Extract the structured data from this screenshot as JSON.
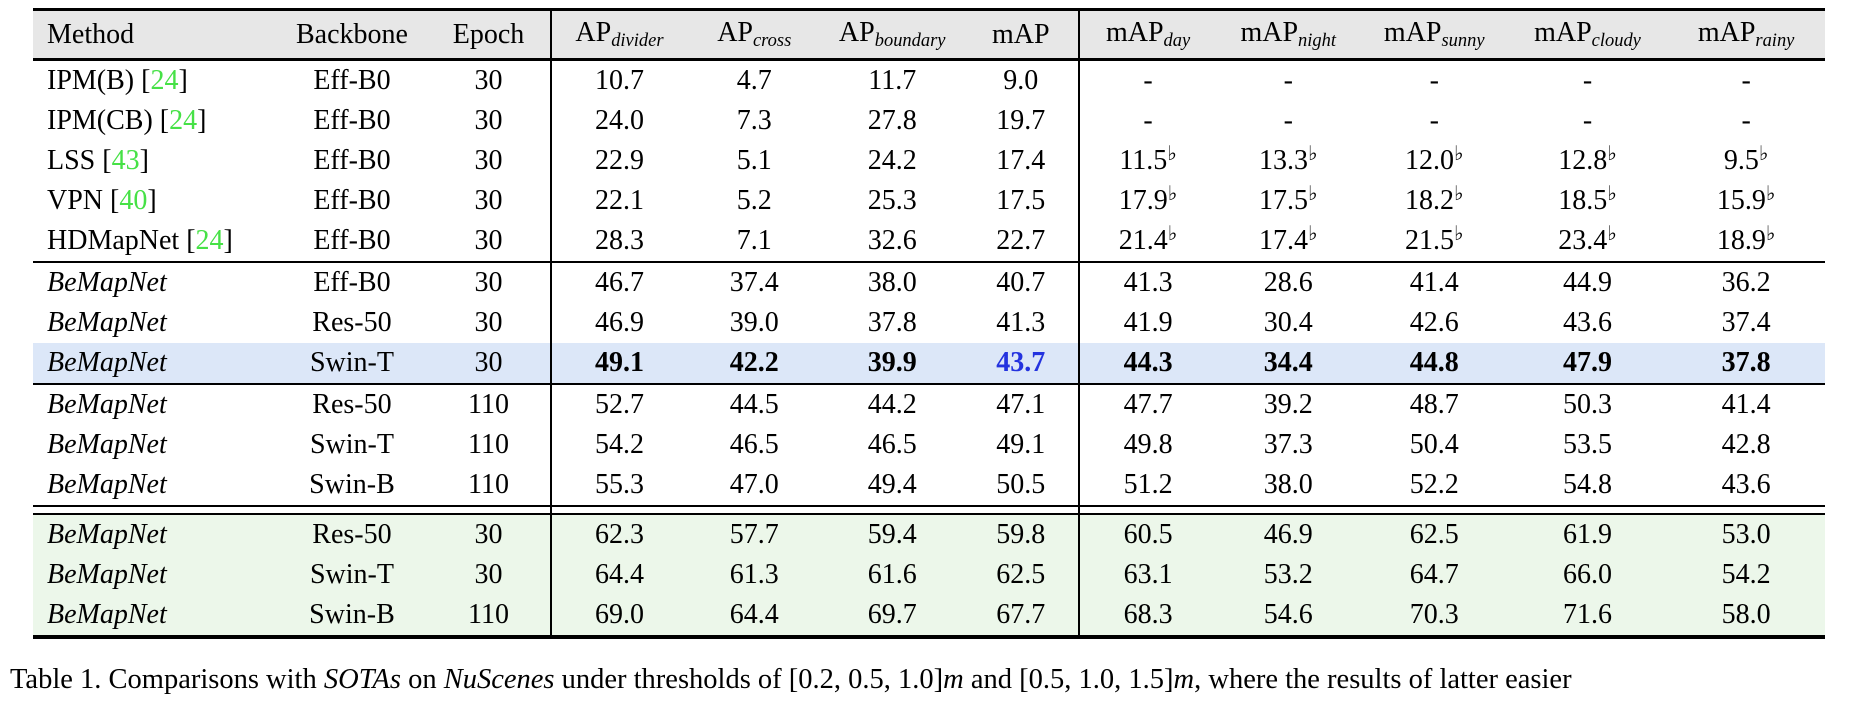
{
  "colors": {
    "header_bg": "#e7e7e7",
    "highlight_blue_row": "#dce7f8",
    "highlight_green_row": "#ecf7ea",
    "citation_green": "#46e146",
    "map_value_blue": "#2433df"
  },
  "table": {
    "header": [
      {
        "key": "method",
        "main": "Method",
        "sub": ""
      },
      {
        "key": "backbone",
        "main": "Backbone",
        "sub": ""
      },
      {
        "key": "epoch",
        "main": "Epoch",
        "sub": ""
      },
      {
        "key": "ap-divider",
        "main": "AP",
        "sub": "divider"
      },
      {
        "key": "ap-cross",
        "main": "AP",
        "sub": "cross"
      },
      {
        "key": "ap-boundary",
        "main": "AP",
        "sub": "boundary"
      },
      {
        "key": "map",
        "main": "mAP",
        "sub": ""
      },
      {
        "key": "map-day",
        "main": "mAP",
        "sub": "day"
      },
      {
        "key": "map-night",
        "main": "mAP",
        "sub": "night"
      },
      {
        "key": "map-sunny",
        "main": "mAP",
        "sub": "sunny"
      },
      {
        "key": "map-cloudy",
        "main": "mAP",
        "sub": "cloudy"
      },
      {
        "key": "map-rainy",
        "main": "mAP",
        "sub": "rainy"
      }
    ],
    "groups": [
      {
        "sep": "none",
        "rows": [
          {
            "method": "IPM(B)",
            "cite": "24",
            "italic": false,
            "backbone": "Eff-B0",
            "epoch": "30",
            "values": [
              "10.7",
              "4.7",
              "11.7",
              "9.0",
              "-",
              "-",
              "-",
              "-",
              "-"
            ],
            "bold_values": false,
            "hl": null,
            "map_blue": false
          },
          {
            "method": "IPM(CB)",
            "cite": "24",
            "italic": false,
            "backbone": "Eff-B0",
            "epoch": "30",
            "values": [
              "24.0",
              "7.3",
              "27.8",
              "19.7",
              "-",
              "-",
              "-",
              "-",
              "-"
            ],
            "bold_values": false,
            "hl": null,
            "map_blue": false
          },
          {
            "method": "LSS",
            "cite": "43",
            "italic": false,
            "backbone": "Eff-B0",
            "epoch": "30",
            "values": [
              "22.9",
              "5.1",
              "24.2",
              "17.4",
              "11.5♭",
              "13.3♭",
              "12.0♭",
              "12.8♭",
              "9.5♭"
            ],
            "bold_values": false,
            "hl": null,
            "map_blue": false
          },
          {
            "method": "VPN",
            "cite": "40",
            "italic": false,
            "backbone": "Eff-B0",
            "epoch": "30",
            "values": [
              "22.1",
              "5.2",
              "25.3",
              "17.5",
              "17.9♭",
              "17.5♭",
              "18.2♭",
              "18.5♭",
              "15.9♭"
            ],
            "bold_values": false,
            "hl": null,
            "map_blue": false
          },
          {
            "method": "HDMapNet",
            "cite": "24",
            "italic": false,
            "backbone": "Eff-B0",
            "epoch": "30",
            "values": [
              "28.3",
              "7.1",
              "32.6",
              "22.7",
              "21.4♭",
              "17.4♭",
              "21.5♭",
              "23.4♭",
              "18.9♭"
            ],
            "bold_values": false,
            "hl": null,
            "map_blue": false
          }
        ]
      },
      {
        "sep": "single",
        "rows": [
          {
            "method": "BeMapNet",
            "cite": "",
            "italic": true,
            "backbone": "Eff-B0",
            "epoch": "30",
            "values": [
              "46.7",
              "37.4",
              "38.0",
              "40.7",
              "41.3",
              "28.6",
              "41.4",
              "44.9",
              "36.2"
            ],
            "bold_values": false,
            "hl": null,
            "map_blue": false
          },
          {
            "method": "BeMapNet",
            "cite": "",
            "italic": true,
            "backbone": "Res-50",
            "epoch": "30",
            "values": [
              "46.9",
              "39.0",
              "37.8",
              "41.3",
              "41.9",
              "30.4",
              "42.6",
              "43.6",
              "37.4"
            ],
            "bold_values": false,
            "hl": null,
            "map_blue": false
          },
          {
            "method": "BeMapNet",
            "cite": "",
            "italic": true,
            "backbone": "Swin-T",
            "epoch": "30",
            "values": [
              "49.1",
              "42.2",
              "39.9",
              "43.7",
              "44.3",
              "34.4",
              "44.8",
              "47.9",
              "37.8"
            ],
            "bold_values": true,
            "hl": "blue",
            "map_blue": true
          }
        ]
      },
      {
        "sep": "single",
        "rows": [
          {
            "method": "BeMapNet",
            "cite": "",
            "italic": true,
            "backbone": "Res-50",
            "epoch": "110",
            "values": [
              "52.7",
              "44.5",
              "44.2",
              "47.1",
              "47.7",
              "39.2",
              "48.7",
              "50.3",
              "41.4"
            ],
            "bold_values": false,
            "hl": null,
            "map_blue": false
          },
          {
            "method": "BeMapNet",
            "cite": "",
            "italic": true,
            "backbone": "Swin-T",
            "epoch": "110",
            "values": [
              "54.2",
              "46.5",
              "46.5",
              "49.1",
              "49.8",
              "37.3",
              "50.4",
              "53.5",
              "42.8"
            ],
            "bold_values": false,
            "hl": null,
            "map_blue": false
          },
          {
            "method": "BeMapNet",
            "cite": "",
            "italic": true,
            "backbone": "Swin-B",
            "epoch": "110",
            "values": [
              "55.3",
              "47.0",
              "49.4",
              "50.5",
              "51.2",
              "38.0",
              "52.2",
              "54.8",
              "43.6"
            ],
            "bold_values": false,
            "hl": null,
            "map_blue": false
          }
        ]
      },
      {
        "sep": "double",
        "rows": [
          {
            "method": "BeMapNet",
            "cite": "",
            "italic": true,
            "backbone": "Res-50",
            "epoch": "30",
            "values": [
              "62.3",
              "57.7",
              "59.4",
              "59.8",
              "60.5",
              "46.9",
              "62.5",
              "61.9",
              "53.0"
            ],
            "bold_values": false,
            "hl": "green",
            "map_blue": false
          },
          {
            "method": "BeMapNet",
            "cite": "",
            "italic": true,
            "backbone": "Swin-T",
            "epoch": "30",
            "values": [
              "64.4",
              "61.3",
              "61.6",
              "62.5",
              "63.1",
              "53.2",
              "64.7",
              "66.0",
              "54.2"
            ],
            "bold_values": false,
            "hl": "green",
            "map_blue": false
          },
          {
            "method": "BeMapNet",
            "cite": "",
            "italic": true,
            "backbone": "Swin-B",
            "epoch": "110",
            "values": [
              "69.0",
              "64.4",
              "69.7",
              "67.7",
              "68.3",
              "54.6",
              "70.3",
              "71.6",
              "58.0"
            ],
            "bold_values": false,
            "hl": "green",
            "map_blue": false
          }
        ]
      }
    ]
  },
  "caption": {
    "segments": [
      {
        "t": "Table 1. Comparisons with ",
        "i": false
      },
      {
        "t": "SOTAs",
        "i": true
      },
      {
        "t": " on ",
        "i": false
      },
      {
        "t": "NuScenes",
        "i": true
      },
      {
        "t": " under thresholds of ",
        "i": false
      },
      {
        "t": "[0.2, 0.5, 1.0]",
        "i": false
      },
      {
        "t": "m",
        "i": true
      },
      {
        "t": " and ",
        "i": false
      },
      {
        "t": "[0.5, 1.0, 1.5]",
        "i": false
      },
      {
        "t": "m",
        "i": true
      },
      {
        "t": ", where the results of latter easier",
        "i": false
      }
    ]
  }
}
